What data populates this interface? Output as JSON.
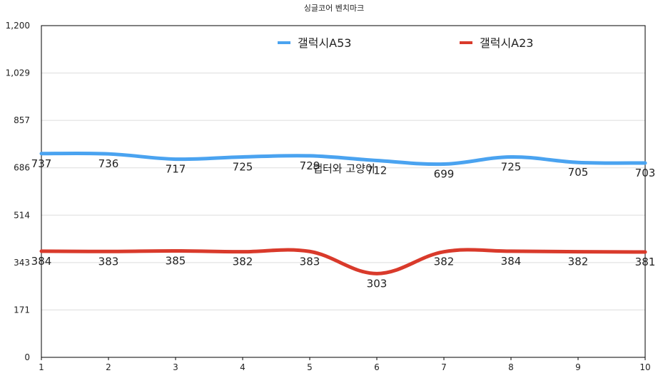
{
  "chart_data": {
    "type": "line",
    "title": "싱글코어 벤치마크",
    "xlabel": "",
    "ylabel": "",
    "categories": [
      "1",
      "2",
      "3",
      "4",
      "5",
      "6",
      "7",
      "8",
      "9",
      "10"
    ],
    "y_ticks": [
      "0",
      "171",
      "343",
      "514",
      "686",
      "857",
      "1,029",
      "1,200"
    ],
    "ylim": [
      0,
      1200
    ],
    "grid": true,
    "legend_position": "top",
    "series": [
      {
        "name": "갤럭시A53",
        "color": "#4aa3f0",
        "values": [
          737,
          736,
          717,
          725,
          729,
          712,
          699,
          725,
          705,
          703
        ]
      },
      {
        "name": "갤럭시A23",
        "color": "#d93a2b",
        "values": [
          384,
          383,
          385,
          382,
          383,
          303,
          382,
          384,
          382,
          381
        ]
      }
    ],
    "annotation": "랩터와 고양이"
  }
}
